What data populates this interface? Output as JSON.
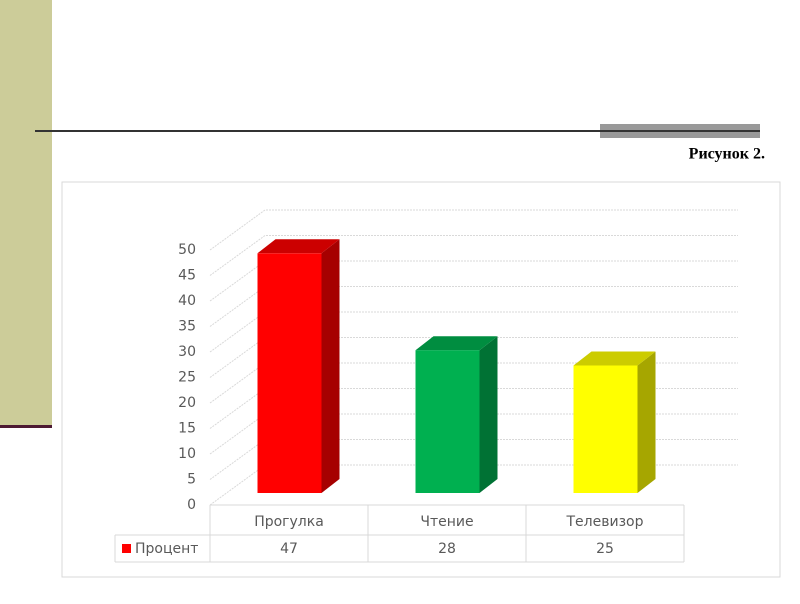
{
  "caption": "Рисунок 2.",
  "chart_data": {
    "type": "bar3d",
    "categories": [
      "Прогулка",
      "Чтение",
      "Телевизор"
    ],
    "series": [
      {
        "name": "Процент",
        "colors": [
          "#ff0000",
          "#00b050",
          "#ffff00"
        ],
        "values": [
          47,
          28,
          25
        ]
      }
    ],
    "ylim": [
      0,
      50
    ],
    "yticks": [
      0,
      5,
      10,
      15,
      20,
      25,
      30,
      35,
      40,
      45,
      50
    ],
    "grid": true
  }
}
